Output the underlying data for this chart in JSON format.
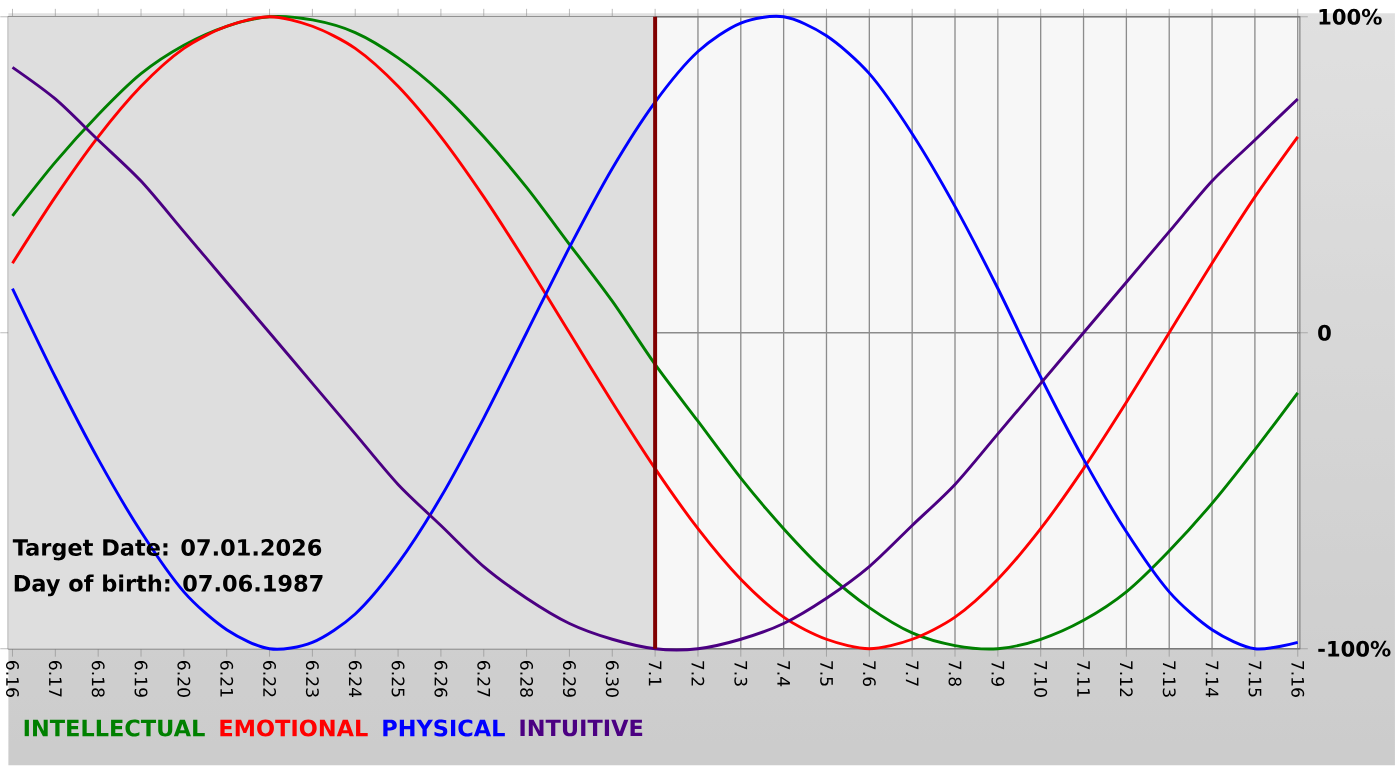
{
  "chart_data": {
    "type": "line",
    "categories": [
      "6.16",
      "6.17",
      "6.18",
      "6.19",
      "6.20",
      "6.21",
      "6.22",
      "6.23",
      "6.24",
      "6.25",
      "6.26",
      "6.27",
      "6.28",
      "6.29",
      "6.30",
      "7.1",
      "7.2",
      "7.3",
      "7.4",
      "7.5",
      "7.6",
      "7.7",
      "7.8",
      "7.9",
      "7.10",
      "7.11",
      "7.12",
      "7.13",
      "7.14",
      "7.15",
      "7.16"
    ],
    "series": [
      {
        "name": "INTELLECTUAL",
        "color": "#008000",
        "values": [
          37,
          54,
          69,
          82,
          91,
          97,
          100,
          99,
          95,
          87,
          76,
          62,
          46,
          28,
          10,
          -10,
          -28,
          -46,
          -62,
          -76,
          -87,
          -95,
          -99,
          -100,
          -97,
          -91,
          -82,
          -69,
          -54,
          -37,
          -19
        ]
      },
      {
        "name": "EMOTIONAL",
        "color": "#ff0000",
        "values": [
          22,
          43,
          62,
          78,
          90,
          97,
          100,
          97,
          90,
          78,
          62,
          43,
          22,
          0,
          -22,
          -43,
          -62,
          -78,
          -90,
          -97,
          -100,
          -97,
          -90,
          -78,
          -62,
          -43,
          -22,
          0,
          22,
          43,
          62
        ]
      },
      {
        "name": "PHYSICAL",
        "color": "#0000ff",
        "values": [
          14,
          -14,
          -40,
          -63,
          -82,
          -94,
          -100,
          -98,
          -89,
          -73,
          -52,
          -27,
          0,
          27,
          52,
          73,
          89,
          98,
          100,
          94,
          82,
          63,
          40,
          14,
          -14,
          -40,
          -63,
          -82,
          -94,
          -100,
          -98
        ]
      },
      {
        "name": "INTUITIVE",
        "color": "#4b0082",
        "values": [
          84,
          74,
          61,
          48,
          32,
          16,
          0,
          -16,
          -32,
          -48,
          -61,
          -74,
          -84,
          -92,
          -97,
          -100,
          -100,
          -97,
          -92,
          -84,
          -74,
          -61,
          -48,
          -32,
          -16,
          0,
          16,
          32,
          48,
          61,
          74
        ]
      }
    ],
    "ylim": [
      -100,
      100
    ],
    "yticks": [
      {
        "value": -100,
        "label": "-100%"
      },
      0,
      {
        "value": 100,
        "label": "100%"
      }
    ],
    "grid": true,
    "legend": "bottom",
    "line_style": "solid",
    "ref_lines": [
      {
        "axis": "x",
        "value": "7.1",
        "color": "#800000"
      }
    ],
    "bands": [
      {
        "axis": "x",
        "from": "6.16",
        "to": "7.1",
        "color": "#dedede"
      }
    ],
    "annotations": [
      "Target Date: 07.01.2026",
      "Day of birth: 07.06.1987"
    ]
  }
}
